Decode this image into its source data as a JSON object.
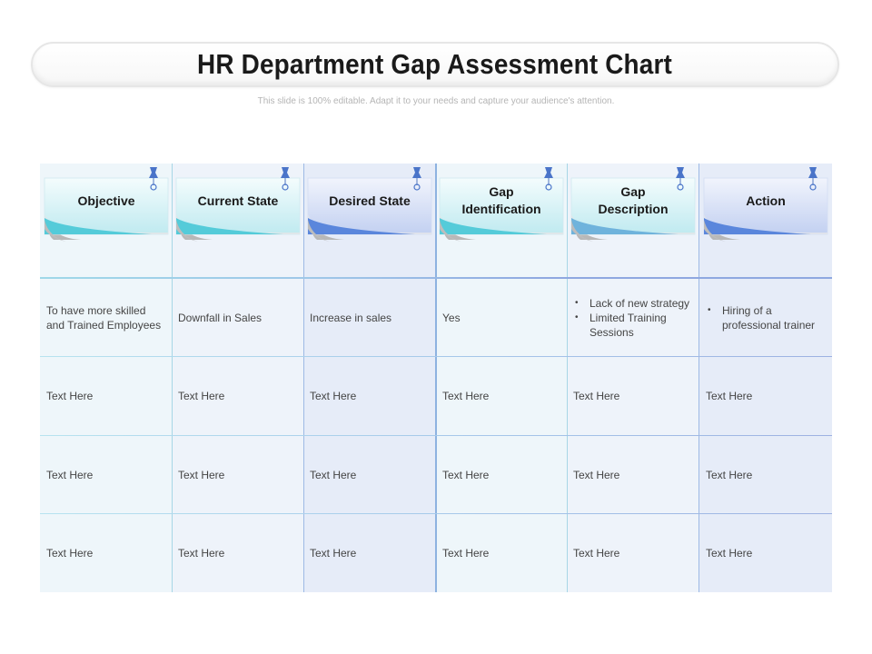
{
  "title": "HR Department Gap Assessment Chart",
  "subtitle": "This slide is 100% editable. Adapt it to your needs and capture your audience's attention.",
  "colors": {
    "teal_note": "#5fd0dc",
    "blue_note": "#5a86dc",
    "pin": "#4a74c9"
  },
  "columns": [
    {
      "header": "Objective"
    },
    {
      "header": "Current State"
    },
    {
      "header": "Desired State"
    },
    {
      "header": "Gap\nIdentification"
    },
    {
      "header": "Gap\nDescription"
    },
    {
      "header": "Action"
    }
  ],
  "rows": [
    {
      "objective": "To have more skilled and Trained Employees",
      "current_state": "Downfall in Sales",
      "desired_state": "Increase in sales",
      "gap_identification": "Yes",
      "gap_description": [
        "Lack of new strategy",
        "Limited Training Sessions"
      ],
      "action": [
        "Hiring of a professional trainer"
      ]
    },
    {
      "objective": "Text Here",
      "current_state": "Text Here",
      "desired_state": "Text Here",
      "gap_identification": "Text Here",
      "gap_description": "Text Here",
      "action": "Text Here"
    },
    {
      "objective": "Text Here",
      "current_state": "Text Here",
      "desired_state": "Text Here",
      "gap_identification": "Text Here",
      "gap_description": "Text Here",
      "action": "Text Here"
    },
    {
      "objective": "Text Here",
      "current_state": "Text Here",
      "desired_state": "Text Here",
      "gap_identification": "Text Here",
      "gap_description": "Text Here",
      "action": "Text Here"
    }
  ]
}
